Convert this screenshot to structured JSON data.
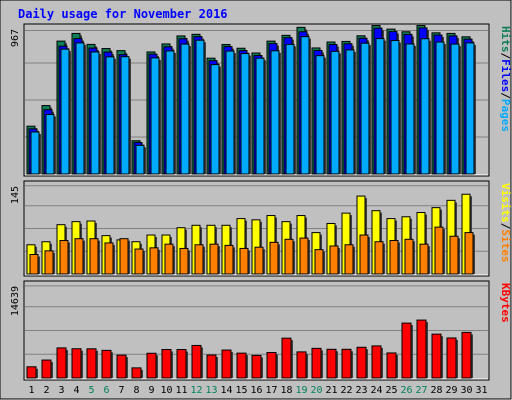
{
  "chart_data": {
    "type": "bar",
    "title": "Daily usage for November 2016",
    "categories": [
      "1",
      "2",
      "3",
      "4",
      "5",
      "6",
      "7",
      "8",
      "9",
      "10",
      "11",
      "12",
      "13",
      "14",
      "15",
      "16",
      "17",
      "18",
      "19",
      "20",
      "21",
      "22",
      "23",
      "24",
      "25",
      "26",
      "27",
      "28",
      "29",
      "30",
      "31"
    ],
    "weekend_days": [
      "5",
      "6",
      "12",
      "13",
      "19",
      "20",
      "26",
      "27"
    ],
    "hits_panel": {
      "ymax": 967,
      "ymax_label": "967",
      "right_label_parts": [
        "Pages",
        "Files",
        "Hits"
      ],
      "series": [
        {
          "name": "Hits",
          "color": "#0e7e56",
          "values": [
            322,
            461,
            895,
            947,
            873,
            845,
            831,
            224,
            822,
            876,
            930,
            941,
            780,
            872,
            847,
            815,
            895,
            934,
            988,
            849,
            889,
            893,
            931,
            1000,
            976,
            958,
            1000,
            951,
            947,
            924,
            null
          ]
        },
        {
          "name": "Files",
          "color": "#0000ff",
          "values": [
            304,
            433,
            861,
            912,
            848,
            821,
            804,
            212,
            807,
            857,
            911,
            925,
            763,
            858,
            831,
            798,
            878,
            918,
            958,
            832,
            872,
            877,
            914,
            982,
            959,
            940,
            984,
            936,
            930,
            908,
            null
          ]
        },
        {
          "name": "Pages",
          "color": "#00aaff",
          "values": [
            283,
            401,
            841,
            883,
            822,
            789,
            790,
            193,
            782,
            829,
            875,
            901,
            737,
            828,
            811,
            780,
            830,
            873,
            925,
            797,
            826,
            836,
            881,
            912,
            899,
            876,
            911,
            889,
            875,
            883,
            null
          ]
        }
      ]
    },
    "visits_panel": {
      "ymax": 145,
      "ymax_label": "145",
      "right_label_parts": [
        "Sites",
        "Visits"
      ],
      "series": [
        {
          "name": "Visits",
          "color": "#ffff00",
          "values": [
            48,
            53,
            81,
            86,
            87,
            63,
            56,
            53,
            64,
            64,
            76,
            80,
            80,
            80,
            91,
            89,
            96,
            86,
            96,
            68,
            83,
            100,
            128,
            104,
            91,
            94,
            101,
            109,
            121,
            131,
            null
          ]
        },
        {
          "name": "Sites",
          "color": "#ff8000",
          "values": [
            32,
            38,
            55,
            58,
            58,
            51,
            58,
            41,
            43,
            49,
            42,
            48,
            49,
            47,
            42,
            44,
            52,
            57,
            59,
            40,
            46,
            48,
            64,
            53,
            55,
            57,
            49,
            77,
            62,
            68,
            null
          ]
        }
      ]
    },
    "kbytes_panel": {
      "ymax": 14639,
      "ymax_label": "14639",
      "right_label": "KBytes",
      "series": [
        {
          "name": "KBytes",
          "color": "#ff0000",
          "values": [
            1780,
            2850,
            4780,
            4650,
            4640,
            4390,
            3630,
            1610,
            3930,
            4530,
            4520,
            5170,
            3650,
            4440,
            3950,
            3590,
            4050,
            6330,
            4150,
            4710,
            4560,
            4560,
            4880,
            5100,
            3980,
            8720,
            9200,
            6970,
            6360,
            7250,
            null
          ]
        }
      ]
    },
    "colors": {
      "background": "#c0c0c0",
      "panel_background": "#c0c0c0",
      "grid": "#808080",
      "title": "#0000ff",
      "weekday_label": "#000000",
      "weekend_label": "#00805c"
    }
  }
}
